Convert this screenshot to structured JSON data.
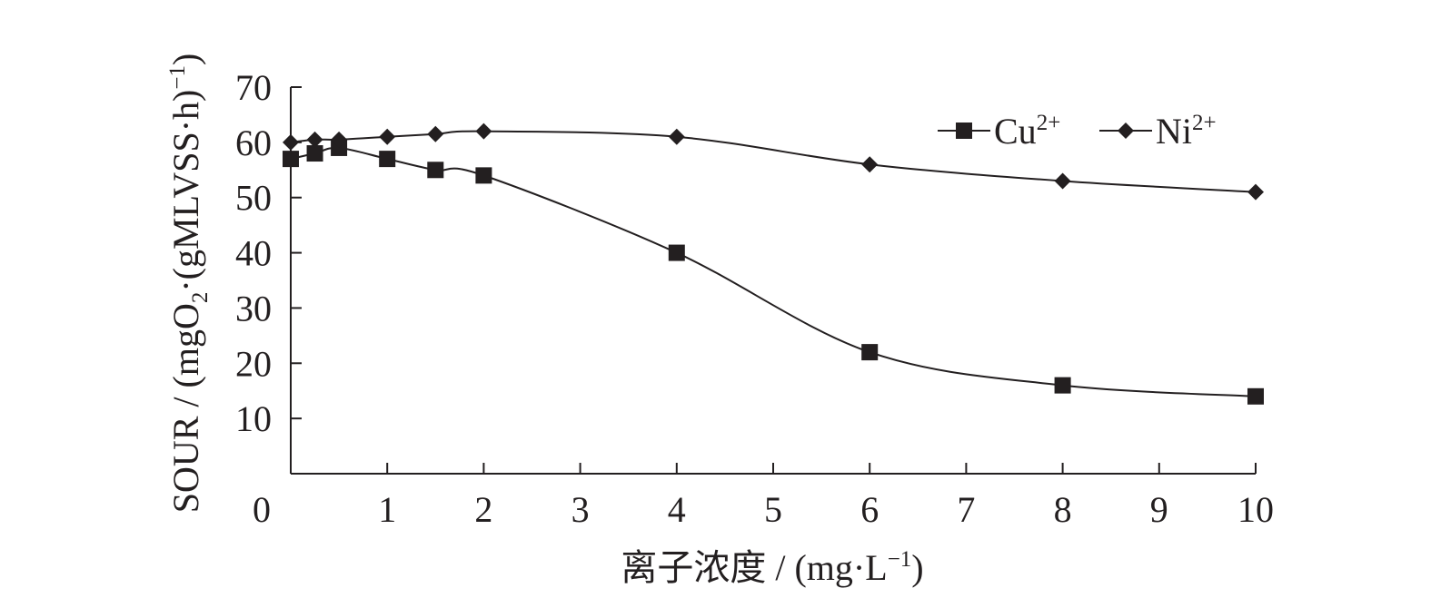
{
  "chart_data": {
    "type": "line",
    "x_label_main": "离子浓度 / (mg·L",
    "x_label_sup": "−1",
    "x_label_close": ")",
    "y_label_parts": {
      "main": "SOUR / (mgO",
      "sub": "2",
      "mid": "·(gMLVSS·h)",
      "sup": "−1",
      "close": ")"
    },
    "xlim": [
      0,
      10
    ],
    "ylim": [
      0,
      70
    ],
    "x_ticks": [
      "0",
      "1",
      "2",
      "3",
      "4",
      "5",
      "6",
      "7",
      "8",
      "9",
      "10"
    ],
    "y_ticks": [
      "10",
      "20",
      "30",
      "40",
      "50",
      "60",
      "70"
    ],
    "legend_position": "top-right",
    "grid": false,
    "series": [
      {
        "name": "Cu",
        "name_sup": "2+",
        "marker": "square",
        "x": [
          0,
          0.25,
          0.5,
          1,
          1.5,
          2,
          4,
          6,
          8,
          10
        ],
        "y": [
          57,
          58,
          59,
          57,
          55,
          54,
          40,
          22,
          16,
          14
        ]
      },
      {
        "name": "Ni",
        "name_sup": "2+",
        "marker": "diamond",
        "x": [
          0,
          0.25,
          0.5,
          1,
          1.5,
          2,
          4,
          6,
          8,
          10
        ],
        "y": [
          60,
          60.5,
          60.5,
          61,
          61.5,
          62,
          61,
          56,
          53,
          51
        ]
      }
    ]
  }
}
